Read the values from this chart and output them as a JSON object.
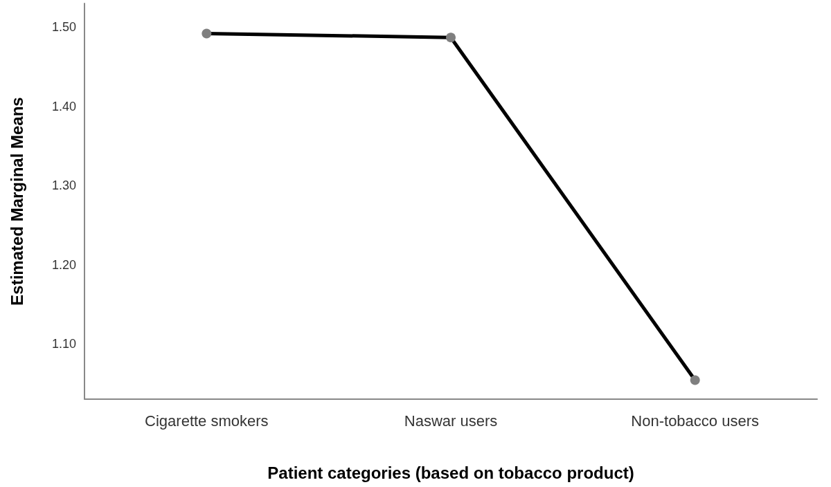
{
  "chart_data": {
    "type": "line",
    "xlabel": "Patient categories (based on tobacco product)",
    "ylabel": "Estimated Marginal Means",
    "categories": [
      "Cigarette smokers",
      "Naswar users",
      "Non-tobacco users"
    ],
    "series": [
      {
        "color": "#000000",
        "values": [
          1.492,
          1.487,
          1.054
        ]
      }
    ],
    "ylim": [
      1.03,
      1.53
    ],
    "yticks": [
      {
        "value": 1.1,
        "label": "1.10"
      },
      {
        "value": 1.2,
        "label": "1.20"
      },
      {
        "value": 1.3,
        "label": "1.30"
      },
      {
        "value": 1.4,
        "label": "1.40"
      },
      {
        "value": 1.5,
        "label": "1.50"
      }
    ],
    "marker": "circle",
    "line_style": "solid"
  }
}
